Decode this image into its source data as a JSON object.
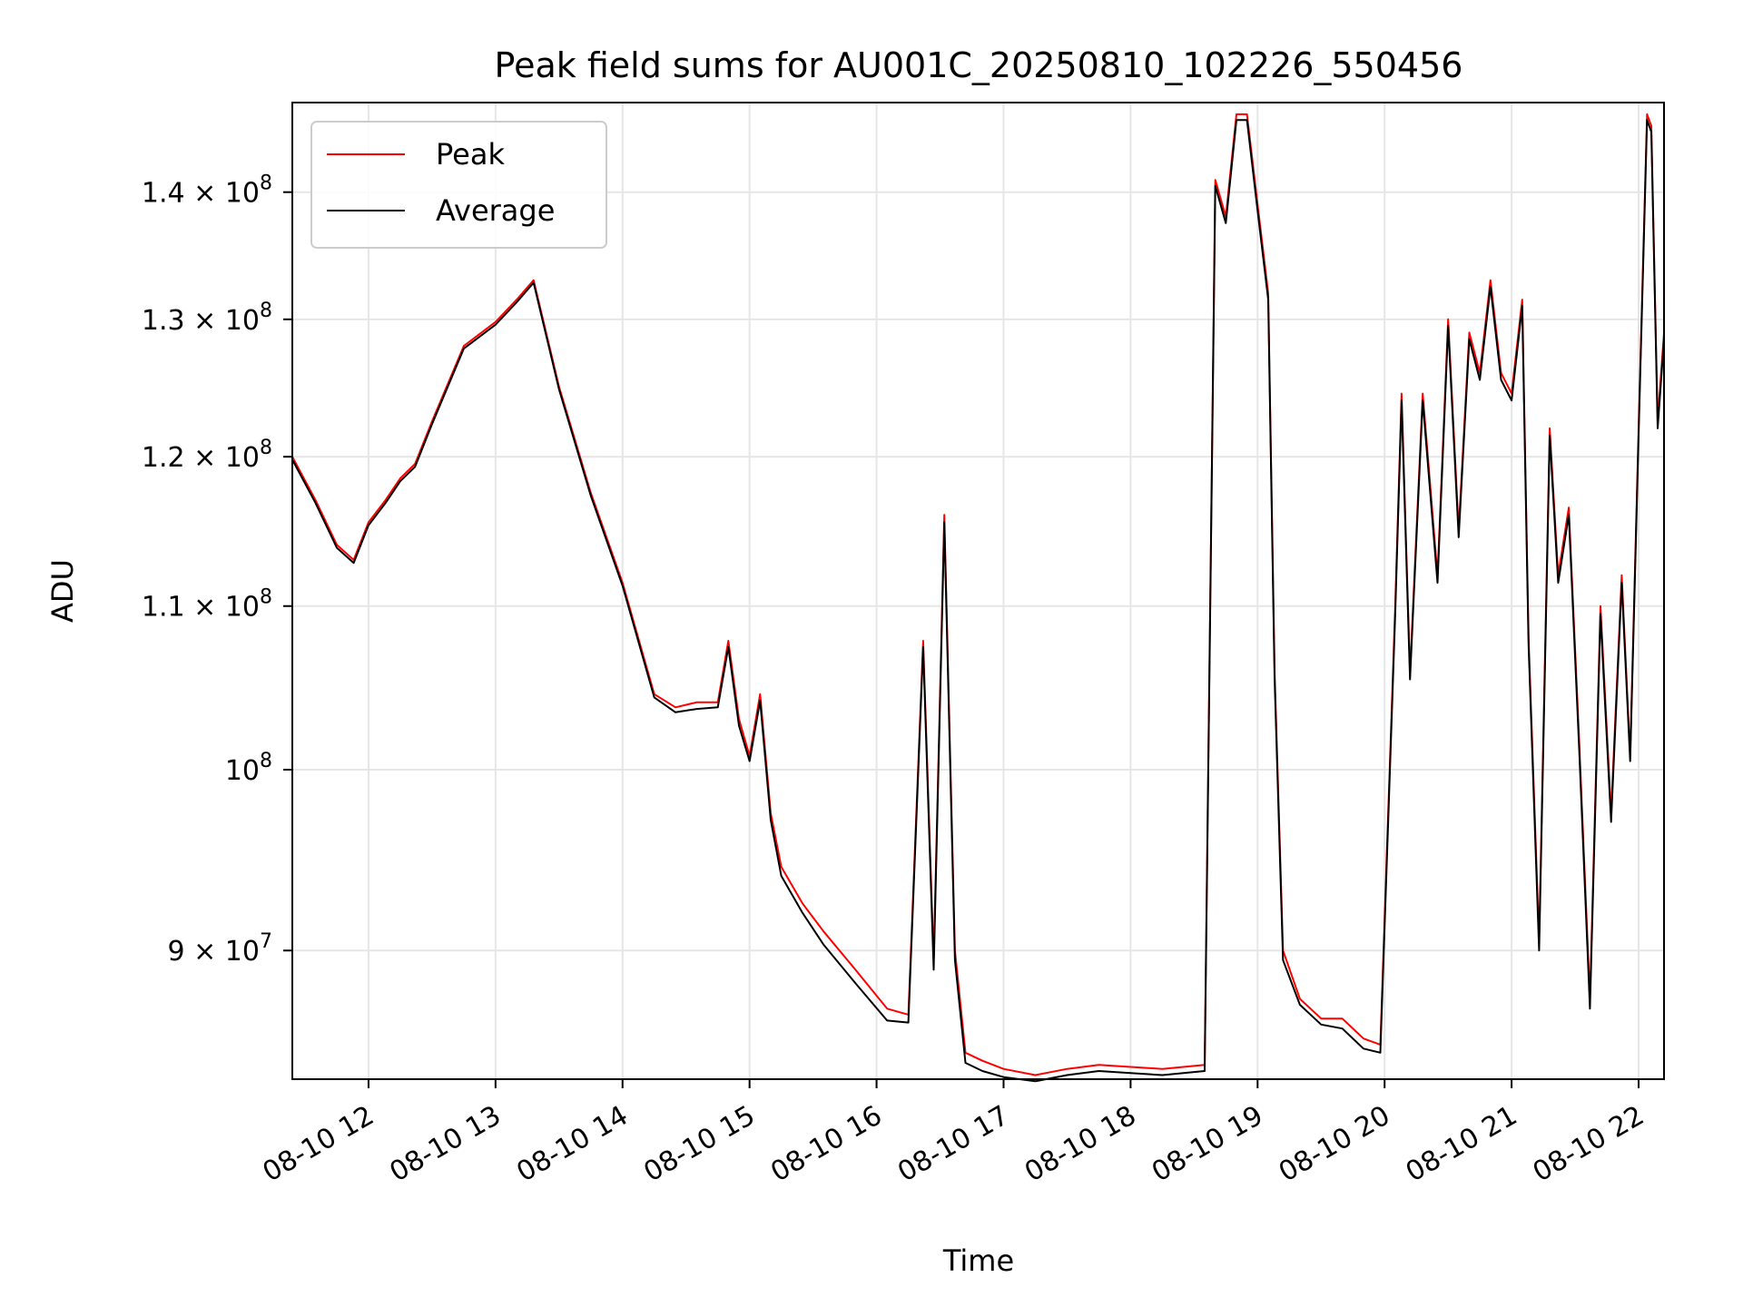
{
  "chart_data": {
    "type": "line",
    "title": "Peak field sums for AU001C_20250810_102226_550456",
    "xlabel": "Time",
    "ylabel": "ADU",
    "y_scale": "log",
    "grid": true,
    "legend_position": "upper-left",
    "xlim": [
      "2025-08-10 11:24",
      "2025-08-10 22:12"
    ],
    "ylim": [
      83500000,
      147500000
    ],
    "x_ticks": [
      {
        "value": "2025-08-10 12:00",
        "label": "08-10 12"
      },
      {
        "value": "2025-08-10 13:00",
        "label": "08-10 13"
      },
      {
        "value": "2025-08-10 14:00",
        "label": "08-10 14"
      },
      {
        "value": "2025-08-10 15:00",
        "label": "08-10 15"
      },
      {
        "value": "2025-08-10 16:00",
        "label": "08-10 16"
      },
      {
        "value": "2025-08-10 17:00",
        "label": "08-10 17"
      },
      {
        "value": "2025-08-10 18:00",
        "label": "08-10 18"
      },
      {
        "value": "2025-08-10 19:00",
        "label": "08-10 19"
      },
      {
        "value": "2025-08-10 20:00",
        "label": "08-10 20"
      },
      {
        "value": "2025-08-10 21:00",
        "label": "08-10 21"
      },
      {
        "value": "2025-08-10 22:00",
        "label": "08-10 22"
      }
    ],
    "y_ticks": [
      {
        "value": 90000000,
        "mantissa": "9",
        "exponent": "7"
      },
      {
        "value": 100000000,
        "mantissa": "",
        "exponent": "8"
      },
      {
        "value": 110000000,
        "mantissa": "1.1",
        "exponent": "8"
      },
      {
        "value": 120000000,
        "mantissa": "1.2",
        "exponent": "8"
      },
      {
        "value": 130000000,
        "mantissa": "1.3",
        "exponent": "8"
      },
      {
        "value": 140000000,
        "mantissa": "1.4",
        "exponent": "8"
      }
    ],
    "series": [
      {
        "name": "Peak",
        "color": "#ff0000",
        "x": [
          "2025-08-10 11:24",
          "2025-08-10 11:35",
          "2025-08-10 11:45",
          "2025-08-10 11:53",
          "2025-08-10 12:00",
          "2025-08-10 12:08",
          "2025-08-10 12:15",
          "2025-08-10 12:22",
          "2025-08-10 12:30",
          "2025-08-10 12:45",
          "2025-08-10 13:00",
          "2025-08-10 13:10",
          "2025-08-10 13:18",
          "2025-08-10 13:30",
          "2025-08-10 13:45",
          "2025-08-10 14:00",
          "2025-08-10 14:15",
          "2025-08-10 14:25",
          "2025-08-10 14:35",
          "2025-08-10 14:45",
          "2025-08-10 14:50",
          "2025-08-10 14:55",
          "2025-08-10 15:00",
          "2025-08-10 15:05",
          "2025-08-10 15:10",
          "2025-08-10 15:15",
          "2025-08-10 15:25",
          "2025-08-10 15:35",
          "2025-08-10 15:50",
          "2025-08-10 16:05",
          "2025-08-10 16:15",
          "2025-08-10 16:22",
          "2025-08-10 16:27",
          "2025-08-10 16:32",
          "2025-08-10 16:37",
          "2025-08-10 16:42",
          "2025-08-10 16:50",
          "2025-08-10 17:00",
          "2025-08-10 17:15",
          "2025-08-10 17:30",
          "2025-08-10 17:45",
          "2025-08-10 18:00",
          "2025-08-10 18:15",
          "2025-08-10 18:35",
          "2025-08-10 18:40",
          "2025-08-10 18:45",
          "2025-08-10 18:50",
          "2025-08-10 18:55",
          "2025-08-10 19:00",
          "2025-08-10 19:05",
          "2025-08-10 19:08",
          "2025-08-10 19:12",
          "2025-08-10 19:20",
          "2025-08-10 19:30",
          "2025-08-10 19:40",
          "2025-08-10 19:50",
          "2025-08-10 19:58",
          "2025-08-10 20:05",
          "2025-08-10 20:08",
          "2025-08-10 20:12",
          "2025-08-10 20:18",
          "2025-08-10 20:25",
          "2025-08-10 20:30",
          "2025-08-10 20:35",
          "2025-08-10 20:40",
          "2025-08-10 20:45",
          "2025-08-10 20:50",
          "2025-08-10 20:55",
          "2025-08-10 21:00",
          "2025-08-10 21:05",
          "2025-08-10 21:08",
          "2025-08-10 21:13",
          "2025-08-10 21:18",
          "2025-08-10 21:22",
          "2025-08-10 21:27",
          "2025-08-10 21:32",
          "2025-08-10 21:37",
          "2025-08-10 21:42",
          "2025-08-10 21:47",
          "2025-08-10 21:52",
          "2025-08-10 21:56",
          "2025-08-10 22:00",
          "2025-08-10 22:04",
          "2025-08-10 22:06",
          "2025-08-10 22:09",
          "2025-08-10 22:12"
        ],
        "values": [
          120000000,
          117000000,
          114000000,
          113000000,
          115500000,
          117000000,
          118500000,
          119500000,
          122500000,
          128000000,
          129800000,
          131500000,
          133000000,
          125000000,
          117500000,
          111500000,
          104500000,
          103700000,
          104000000,
          104000000,
          107800000,
          103000000,
          100800000,
          104500000,
          97500000,
          94500000,
          92500000,
          91000000,
          89000000,
          87000000,
          86700000,
          107800000,
          89500000,
          116000000,
          90000000,
          84800000,
          84400000,
          84000000,
          83700000,
          84000000,
          84200000,
          84100000,
          84000000,
          84200000,
          141000000,
          138000000,
          146500000,
          146500000,
          139000000,
          132000000,
          106000000,
          90000000,
          87500000,
          86500000,
          86500000,
          85500000,
          85200000,
          110000000,
          124500000,
          105800000,
          124500000,
          112000000,
          130000000,
          115000000,
          129000000,
          126000000,
          133000000,
          126000000,
          124500000,
          131500000,
          108000000,
          90500000,
          122000000,
          112000000,
          116500000,
          101500000,
          87500000,
          110000000,
          97500000,
          112000000,
          100800000,
          122000000,
          146500000,
          145500000,
          122500000,
          129000000
        ]
      },
      {
        "name": "Average",
        "color": "#000000",
        "x": [
          "2025-08-10 11:24",
          "2025-08-10 11:35",
          "2025-08-10 11:45",
          "2025-08-10 11:53",
          "2025-08-10 12:00",
          "2025-08-10 12:08",
          "2025-08-10 12:15",
          "2025-08-10 12:22",
          "2025-08-10 12:30",
          "2025-08-10 12:45",
          "2025-08-10 13:00",
          "2025-08-10 13:10",
          "2025-08-10 13:18",
          "2025-08-10 13:30",
          "2025-08-10 13:45",
          "2025-08-10 14:00",
          "2025-08-10 14:15",
          "2025-08-10 14:25",
          "2025-08-10 14:35",
          "2025-08-10 14:45",
          "2025-08-10 14:50",
          "2025-08-10 14:55",
          "2025-08-10 15:00",
          "2025-08-10 15:05",
          "2025-08-10 15:10",
          "2025-08-10 15:15",
          "2025-08-10 15:25",
          "2025-08-10 15:35",
          "2025-08-10 15:50",
          "2025-08-10 16:05",
          "2025-08-10 16:15",
          "2025-08-10 16:22",
          "2025-08-10 16:27",
          "2025-08-10 16:32",
          "2025-08-10 16:37",
          "2025-08-10 16:42",
          "2025-08-10 16:50",
          "2025-08-10 17:00",
          "2025-08-10 17:15",
          "2025-08-10 17:30",
          "2025-08-10 17:45",
          "2025-08-10 18:00",
          "2025-08-10 18:15",
          "2025-08-10 18:35",
          "2025-08-10 18:40",
          "2025-08-10 18:45",
          "2025-08-10 18:50",
          "2025-08-10 18:55",
          "2025-08-10 19:00",
          "2025-08-10 19:05",
          "2025-08-10 19:08",
          "2025-08-10 19:12",
          "2025-08-10 19:20",
          "2025-08-10 19:30",
          "2025-08-10 19:40",
          "2025-08-10 19:50",
          "2025-08-10 19:58",
          "2025-08-10 20:05",
          "2025-08-10 20:08",
          "2025-08-10 20:12",
          "2025-08-10 20:18",
          "2025-08-10 20:25",
          "2025-08-10 20:30",
          "2025-08-10 20:35",
          "2025-08-10 20:40",
          "2025-08-10 20:45",
          "2025-08-10 20:50",
          "2025-08-10 20:55",
          "2025-08-10 21:00",
          "2025-08-10 21:05",
          "2025-08-10 21:08",
          "2025-08-10 21:13",
          "2025-08-10 21:18",
          "2025-08-10 21:22",
          "2025-08-10 21:27",
          "2025-08-10 21:32",
          "2025-08-10 21:37",
          "2025-08-10 21:42",
          "2025-08-10 21:47",
          "2025-08-10 21:52",
          "2025-08-10 21:56",
          "2025-08-10 22:00",
          "2025-08-10 22:04",
          "2025-08-10 22:06",
          "2025-08-10 22:09",
          "2025-08-10 22:12"
        ],
        "values": [
          119800000,
          116800000,
          113800000,
          112800000,
          115300000,
          116800000,
          118300000,
          119300000,
          122300000,
          127800000,
          129600000,
          131300000,
          132800000,
          124800000,
          117300000,
          111300000,
          104300000,
          103400000,
          103600000,
          103700000,
          107400000,
          102600000,
          100500000,
          104100000,
          97100000,
          94000000,
          92000000,
          90300000,
          88300000,
          86400000,
          86300000,
          107400000,
          89000000,
          115500000,
          89500000,
          84300000,
          83900000,
          83600000,
          83400000,
          83700000,
          83900000,
          83800000,
          83700000,
          83900000,
          140500000,
          137500000,
          146000000,
          146000000,
          138500000,
          131500000,
          105500000,
          89500000,
          87200000,
          86200000,
          86000000,
          85000000,
          84800000,
          109500000,
          124000000,
          105400000,
          124000000,
          111500000,
          129500000,
          114500000,
          128500000,
          125500000,
          132500000,
          125500000,
          124000000,
          131000000,
          107500000,
          90000000,
          121500000,
          111500000,
          116000000,
          101000000,
          87000000,
          109500000,
          97000000,
          111500000,
          100500000,
          121500000,
          146000000,
          145000000,
          122000000,
          128500000
        ]
      }
    ]
  }
}
